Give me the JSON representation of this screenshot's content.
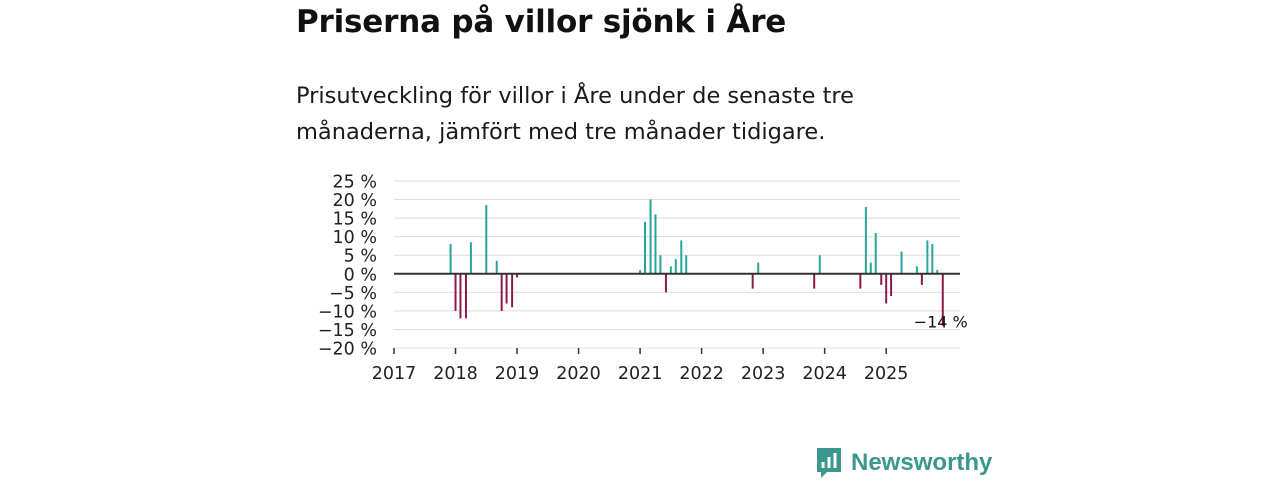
{
  "title": "Priserna på villor sjönk i Åre",
  "subtitle": "Prisutveckling för villor i Åre under de senaste tre månaderna, jämfört med tre månader tidigare.",
  "brand": {
    "name": "Newsworthy",
    "color": "#3c978f"
  },
  "colors": {
    "positive": "#26a69a",
    "negative": "#8b1a4a",
    "grid": "#dddddd",
    "zero": "#333333"
  },
  "chart_data": {
    "type": "bar",
    "title": "Priserna på villor sjönk i Åre",
    "xlabel": "",
    "ylabel": "",
    "xlim": [
      2017.0,
      2026.2
    ],
    "ylim": [
      -20,
      25
    ],
    "yticks": [
      {
        "value": 25,
        "label": "25 %"
      },
      {
        "value": 20,
        "label": "20 %"
      },
      {
        "value": 15,
        "label": "15 %"
      },
      {
        "value": 10,
        "label": "10 %"
      },
      {
        "value": 5,
        "label": "5 %"
      },
      {
        "value": 0,
        "label": "0 %"
      },
      {
        "value": -5,
        "label": "−5 %"
      },
      {
        "value": -10,
        "label": "−10 %"
      },
      {
        "value": -15,
        "label": "−15 %"
      },
      {
        "value": -20,
        "label": "−20 %"
      }
    ],
    "xticks": [
      {
        "value": 2017,
        "label": "2017"
      },
      {
        "value": 2018,
        "label": "2018"
      },
      {
        "value": 2019,
        "label": "2019"
      },
      {
        "value": 2020,
        "label": "2020"
      },
      {
        "value": 2021,
        "label": "2021"
      },
      {
        "value": 2022,
        "label": "2022"
      },
      {
        "value": 2023,
        "label": "2023"
      },
      {
        "value": 2024,
        "label": "2024"
      },
      {
        "value": 2025,
        "label": "2025"
      }
    ],
    "x": [
      2017.92,
      2018.0,
      2018.08,
      2018.17,
      2018.25,
      2018.5,
      2018.67,
      2018.75,
      2018.83,
      2018.92,
      2019.0,
      2021.0,
      2021.08,
      2021.17,
      2021.25,
      2021.33,
      2021.42,
      2021.5,
      2021.58,
      2021.67,
      2021.75,
      2022.83,
      2022.92,
      2023.83,
      2023.92,
      2024.58,
      2024.67,
      2024.75,
      2024.83,
      2024.92,
      2025.0,
      2025.08,
      2025.25,
      2025.5,
      2025.58,
      2025.67,
      2025.75,
      2025.83,
      2025.92
    ],
    "values": [
      8,
      -10,
      -12,
      -12,
      8.5,
      18.5,
      3.5,
      -10,
      -8,
      -9,
      -1,
      1,
      14,
      20,
      16,
      5,
      -5,
      2,
      4,
      9,
      5,
      -4,
      3,
      -4,
      5,
      -4,
      18,
      3,
      11,
      -3,
      -8,
      -6,
      6,
      2,
      -3,
      9,
      8,
      1,
      -14
    ],
    "annotations": [
      {
        "x": 2025.92,
        "y": -14,
        "text": "−14 %"
      }
    ]
  }
}
